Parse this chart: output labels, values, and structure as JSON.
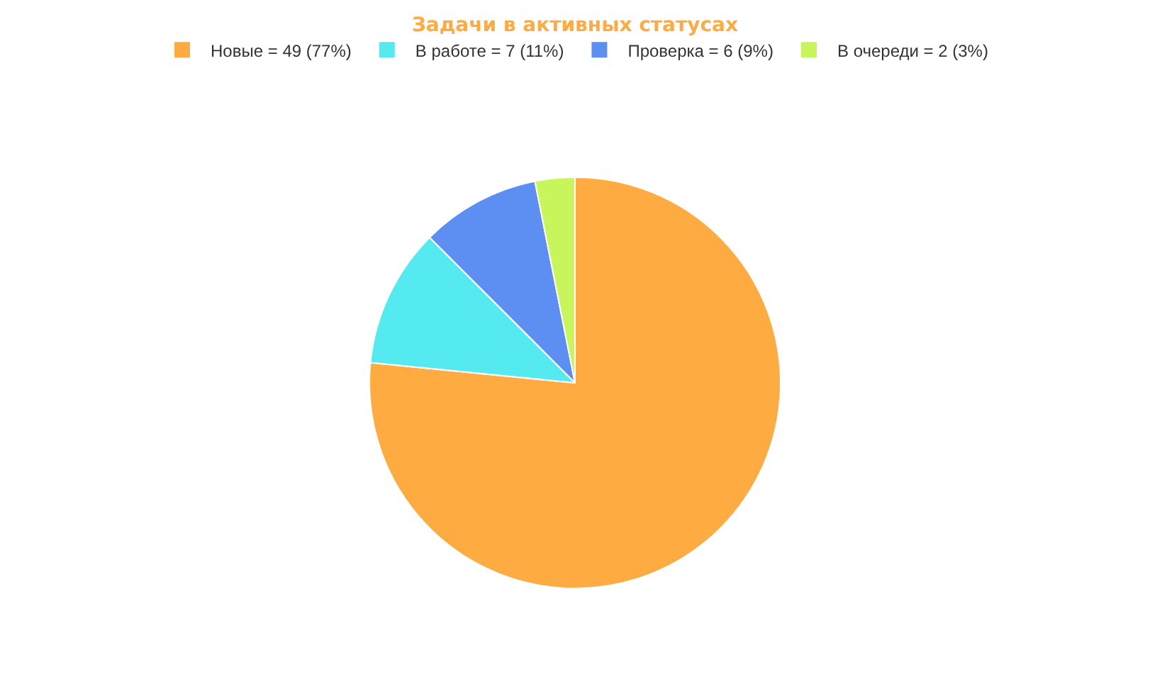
{
  "chart_data": {
    "type": "pie",
    "title": "Задачи в активных статусах",
    "categories": [
      "Новые = 49 (77%)",
      "В работе = 7 (11%)",
      "Проверка = 6 (9%)",
      "В очереди = 2 (3%)"
    ],
    "values": [
      49,
      7,
      6,
      2
    ],
    "colors": [
      "#feab42",
      "#55e9f0",
      "#5d8ef1",
      "#c8f55c"
    ],
    "legend": "top"
  }
}
